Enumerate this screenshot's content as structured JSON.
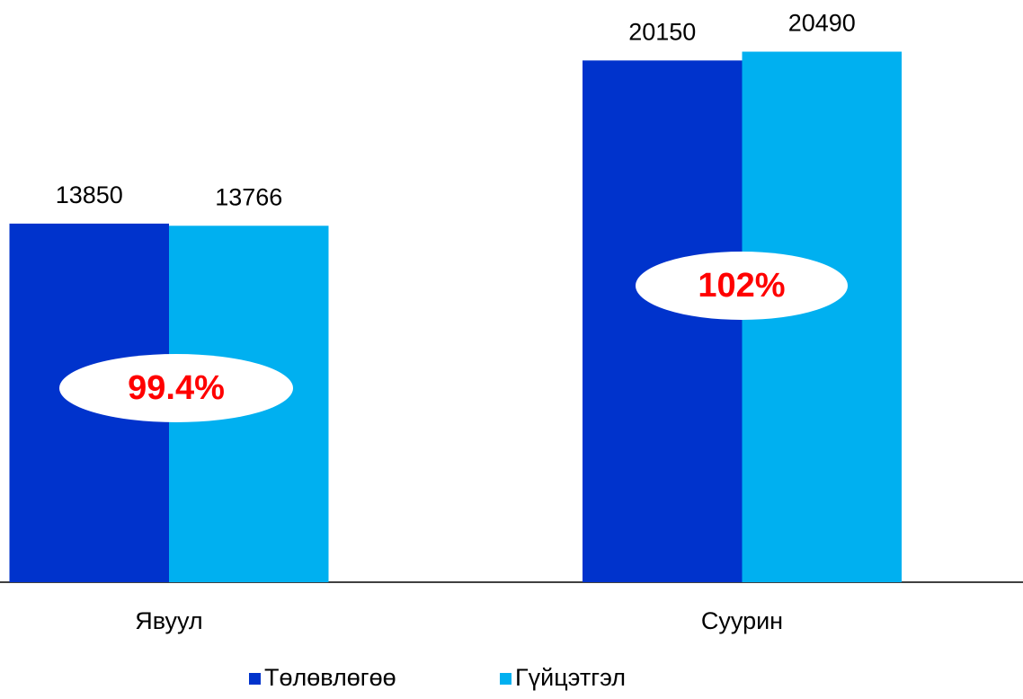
{
  "chart_data": {
    "type": "bar",
    "categories": [
      "Явуул",
      "Суурин"
    ],
    "series": [
      {
        "name": "Төлөвлөгөө",
        "color": "#0033cc",
        "values": [
          13850,
          20150
        ]
      },
      {
        "name": "Гүйцэтгэл",
        "color": "#00b0f0",
        "values": [
          13766,
          20490
        ]
      }
    ],
    "ylim": [
      0,
      22000
    ],
    "annotations": [
      "99.4%",
      "102%"
    ],
    "legend": "bottom"
  }
}
